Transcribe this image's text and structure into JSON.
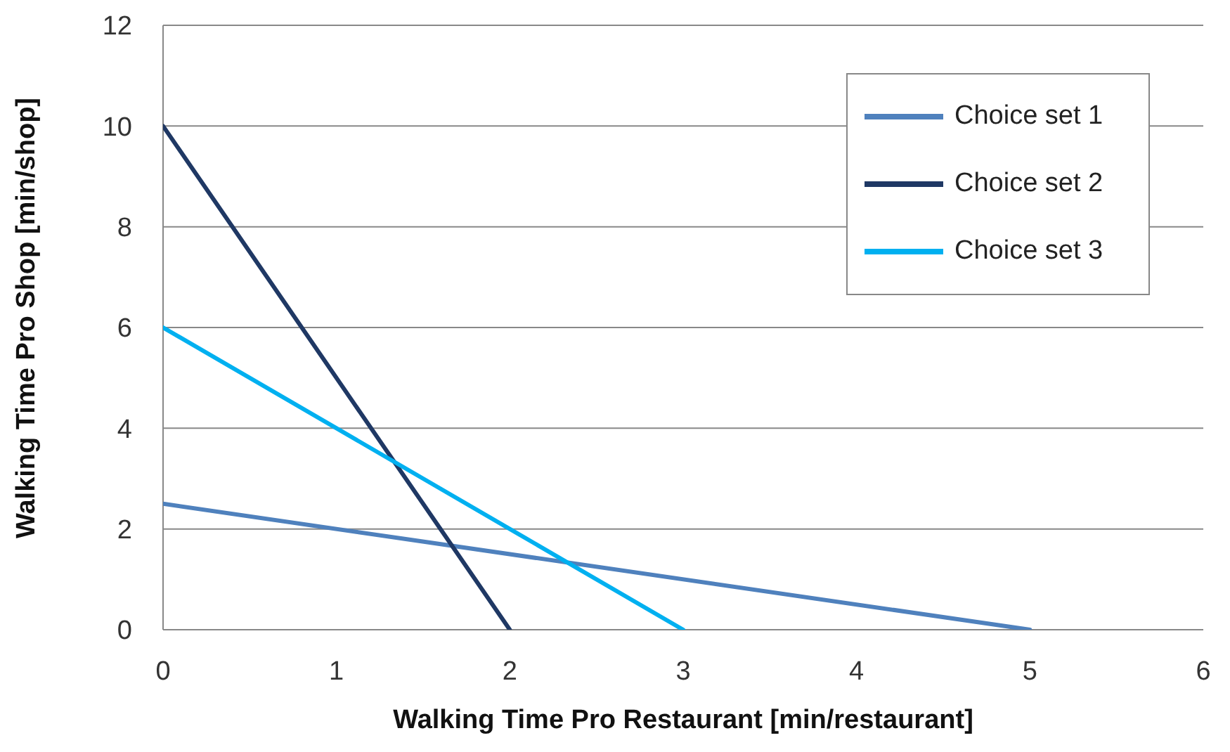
{
  "chart_data": {
    "type": "line",
    "xlabel": "Walking Time Pro Restaurant [min/restaurant]",
    "ylabel": "Walking Time Pro Shop [min/shop]",
    "xlim": [
      0,
      6
    ],
    "xticks": [
      0,
      1,
      2,
      3,
      4,
      5,
      6
    ],
    "ylim": [
      0,
      12
    ],
    "yticks": [
      0,
      2,
      4,
      6,
      8,
      10,
      12
    ],
    "grid": "y",
    "legend": "top right",
    "marker": "none",
    "line_style": "solid",
    "series": [
      {
        "name": "Choice set 1",
        "color": "#4f81bd",
        "x": [
          0,
          5
        ],
        "values": [
          2.5,
          0
        ]
      },
      {
        "name": "Choice set 2",
        "color": "#1f3864",
        "x": [
          0,
          2
        ],
        "values": [
          10,
          0
        ]
      },
      {
        "name": "Choice set 3",
        "color": "#00b0f0",
        "x": [
          0,
          3
        ],
        "values": [
          6,
          0
        ]
      }
    ]
  }
}
